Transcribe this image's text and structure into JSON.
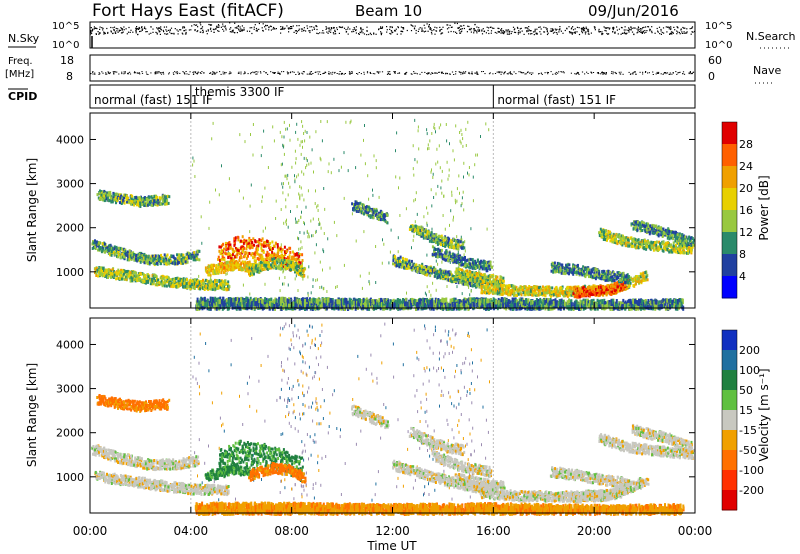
{
  "header": {
    "title": "Fort Hays East (fitACF)",
    "beam": "Beam 10",
    "date": "09/Jun/2016"
  },
  "nsky_panel": {
    "left_label": "N.Sky",
    "right_label": "N.Search",
    "tick_high": "10^5",
    "tick_low": "10^0"
  },
  "freq_panel": {
    "label_line1": "Freq.",
    "label_line2": "[MHz]",
    "left_ticks": [
      "18",
      "8"
    ],
    "right_ticks": [
      "60",
      "0"
    ],
    "right_label": "Nave"
  },
  "cpid_panel": {
    "label": "CPID",
    "segments": [
      {
        "text": "normal (fast) 151 IF",
        "start_hour": 0
      },
      {
        "text": "themis 3300 IF",
        "start_hour": 4
      },
      {
        "text": "normal (fast) 151 IF",
        "start_hour": 16
      }
    ]
  },
  "power_colorbar": {
    "label": "Power [dB]",
    "ticks": [
      "28",
      "24",
      "20",
      "16",
      "12",
      "8",
      "4"
    ],
    "colors": [
      "#e00000",
      "#ff6000",
      "#f0a000",
      "#e8d000",
      "#98c840",
      "#2a8a6a",
      "#2040a0",
      "#0000ff"
    ]
  },
  "velocity_colorbar": {
    "label": "Velocity [m s⁻¹]",
    "ticks": [
      "200",
      "100",
      "50",
      "15",
      "-15",
      "-50",
      "-100",
      "-200"
    ],
    "colors": [
      "#1030c0",
      "#2070a0",
      "#208040",
      "#60c040",
      "#c8c8c0",
      "#f0a000",
      "#ff7000",
      "#ff3000",
      "#e00000"
    ]
  },
  "axes": {
    "ylabel": "Slant Range [km]",
    "yticks": [
      "4000",
      "3000",
      "2000",
      "1000"
    ],
    "xlabel": "Time UT",
    "xticks": [
      "00:00",
      "04:00",
      "08:00",
      "12:00",
      "16:00",
      "20:00",
      "00:00"
    ]
  },
  "chart_data": [
    {
      "type": "heatmap",
      "title": "",
      "xlabel": "",
      "ylabel": "Slant Range [km]",
      "xlim": [
        0,
        24
      ],
      "ylim": [
        180,
        4600
      ],
      "colorbar": "Power [dB]",
      "clim": [
        0,
        30
      ],
      "features": [
        {
          "points": [
            [
              0.3,
              2780
            ],
            [
              1,
              2700
            ],
            [
              2,
              2620
            ],
            [
              3.1,
              2680
            ]
          ],
          "value": 12
        },
        {
          "points": [
            [
              0.1,
              1650
            ],
            [
              1.2,
              1450
            ],
            [
              2.4,
              1300
            ],
            [
              3.5,
              1320
            ],
            [
              4.3,
              1400
            ]
          ],
          "value": 12
        },
        {
          "points": [
            [
              0.2,
              1050
            ],
            [
              1.5,
              940
            ],
            [
              2.8,
              830
            ],
            [
              4,
              750
            ],
            [
              5.5,
              720
            ]
          ],
          "value": 14
        },
        {
          "points": [
            [
              5.1,
              1380
            ],
            [
              5.9,
              1580
            ],
            [
              6.8,
              1520
            ],
            [
              7.6,
              1400
            ],
            [
              8.4,
              1200
            ]
          ],
          "value": 20
        },
        {
          "points": [
            [
              4.6,
              1050
            ],
            [
              5.8,
              1200
            ],
            [
              6.6,
              1120
            ]
          ],
          "value": 18
        },
        {
          "points": [
            [
              6.3,
              1060
            ],
            [
              7.2,
              1230
            ],
            [
              7.9,
              1180
            ],
            [
              8.5,
              1000
            ]
          ],
          "value": 14
        },
        {
          "points": [
            [
              4.2,
              330
            ],
            [
              8,
              330
            ],
            [
              12,
              300
            ],
            [
              16,
              320
            ],
            [
              20,
              280
            ],
            [
              23.5,
              300
            ]
          ],
          "value": 10
        },
        {
          "points": [
            [
              10.4,
              2550
            ],
            [
              11.1,
              2380
            ],
            [
              11.8,
              2230
            ]
          ],
          "value": 10
        },
        {
          "points": [
            [
              12.7,
              2050
            ],
            [
              13.4,
              1850
            ],
            [
              14.1,
              1700
            ],
            [
              14.8,
              1640
            ]
          ],
          "value": 12
        },
        {
          "points": [
            [
              12,
              1300
            ],
            [
              13.4,
              1050
            ],
            [
              14.6,
              880
            ],
            [
              15.6,
              760
            ]
          ],
          "value": 12
        },
        {
          "points": [
            [
              13.6,
              1500
            ],
            [
              14.8,
              1250
            ],
            [
              15.9,
              1140
            ]
          ],
          "value": 10
        },
        {
          "points": [
            [
              14.5,
              1000
            ],
            [
              15.6,
              880
            ],
            [
              16.4,
              800
            ]
          ],
          "value": 14
        },
        {
          "points": [
            [
              15.5,
              660
            ],
            [
              17,
              600
            ],
            [
              19,
              580
            ],
            [
              20.8,
              640
            ],
            [
              22.1,
              960
            ]
          ],
          "value": 16
        },
        {
          "points": [
            [
              19.2,
              560
            ],
            [
              20.6,
              620
            ],
            [
              21.3,
              800
            ]
          ],
          "value": 24
        },
        {
          "points": [
            [
              18.3,
              1140
            ],
            [
              19.4,
              1060
            ],
            [
              20.4,
              950
            ],
            [
              21.4,
              880
            ]
          ],
          "value": 10
        },
        {
          "points": [
            [
              20.2,
              1900
            ],
            [
              21.3,
              1710
            ],
            [
              22.4,
              1620
            ],
            [
              23.9,
              1540
            ]
          ],
          "value": 14
        },
        {
          "points": [
            [
              21.5,
              2100
            ],
            [
              22.8,
              1920
            ],
            [
              23.9,
              1680
            ]
          ],
          "value": 10
        }
      ]
    },
    {
      "type": "heatmap",
      "title": "",
      "xlabel": "Time UT",
      "ylabel": "Slant Range [km]",
      "xlim": [
        0,
        24
      ],
      "ylim": [
        180,
        4600
      ],
      "colorbar": "Velocity [m s⁻¹]",
      "clim": [
        -200,
        200
      ],
      "features": [
        {
          "points": [
            [
              0.3,
              2780
            ],
            [
              1,
              2700
            ],
            [
              2,
              2620
            ],
            [
              3.1,
              2680
            ]
          ],
          "value": -60
        },
        {
          "points": [
            [
              0.1,
              1650
            ],
            [
              1.2,
              1450
            ],
            [
              2.4,
              1300
            ],
            [
              3.5,
              1320
            ],
            [
              4.3,
              1400
            ]
          ],
          "value": 0
        },
        {
          "points": [
            [
              0.2,
              1050
            ],
            [
              1.5,
              940
            ],
            [
              2.8,
              830
            ],
            [
              4,
              750
            ],
            [
              5.5,
              720
            ]
          ],
          "value": 0
        },
        {
          "points": [
            [
              5.1,
              1380
            ],
            [
              5.9,
              1580
            ],
            [
              6.8,
              1520
            ],
            [
              7.6,
              1400
            ],
            [
              8.4,
              1200
            ]
          ],
          "value": 40
        },
        {
          "points": [
            [
              4.6,
              1050
            ],
            [
              5.8,
              1200
            ],
            [
              6.6,
              1120
            ]
          ],
          "value": 40
        },
        {
          "points": [
            [
              6.3,
              1060
            ],
            [
              7.2,
              1230
            ],
            [
              7.9,
              1180
            ],
            [
              8.5,
              1000
            ]
          ],
          "value": -60
        },
        {
          "points": [
            [
              4.2,
              330
            ],
            [
              8,
              330
            ],
            [
              12,
              300
            ],
            [
              16,
              320
            ],
            [
              20,
              280
            ],
            [
              23.5,
              300
            ]
          ],
          "value": -40
        },
        {
          "points": [
            [
              10.4,
              2550
            ],
            [
              11.1,
              2380
            ],
            [
              11.8,
              2230
            ]
          ],
          "value": 0
        },
        {
          "points": [
            [
              12.7,
              2050
            ],
            [
              13.4,
              1850
            ],
            [
              14.1,
              1700
            ],
            [
              14.8,
              1640
            ]
          ],
          "value": 0
        },
        {
          "points": [
            [
              12,
              1300
            ],
            [
              13.4,
              1050
            ],
            [
              14.6,
              880
            ],
            [
              15.6,
              760
            ]
          ],
          "value": 0
        },
        {
          "points": [
            [
              13.6,
              1500
            ],
            [
              14.8,
              1250
            ],
            [
              15.9,
              1140
            ]
          ],
          "value": 0
        },
        {
          "points": [
            [
              14.5,
              1000
            ],
            [
              15.6,
              880
            ],
            [
              16.4,
              800
            ]
          ],
          "value": 0
        },
        {
          "points": [
            [
              15.5,
              660
            ],
            [
              17,
              600
            ],
            [
              19,
              580
            ],
            [
              20.8,
              640
            ],
            [
              22.1,
              960
            ]
          ],
          "value": 0
        },
        {
          "points": [
            [
              19.2,
              560
            ],
            [
              20.6,
              620
            ],
            [
              21.3,
              800
            ]
          ],
          "value": 0
        },
        {
          "points": [
            [
              18.3,
              1140
            ],
            [
              19.4,
              1060
            ],
            [
              20.4,
              950
            ],
            [
              21.4,
              880
            ]
          ],
          "value": 0
        },
        {
          "points": [
            [
              20.2,
              1900
            ],
            [
              21.3,
              1710
            ],
            [
              22.4,
              1620
            ],
            [
              23.9,
              1540
            ]
          ],
          "value": 0
        },
        {
          "points": [
            [
              21.5,
              2100
            ],
            [
              22.8,
              1920
            ],
            [
              23.9,
              1680
            ]
          ],
          "value": 0
        }
      ]
    }
  ]
}
